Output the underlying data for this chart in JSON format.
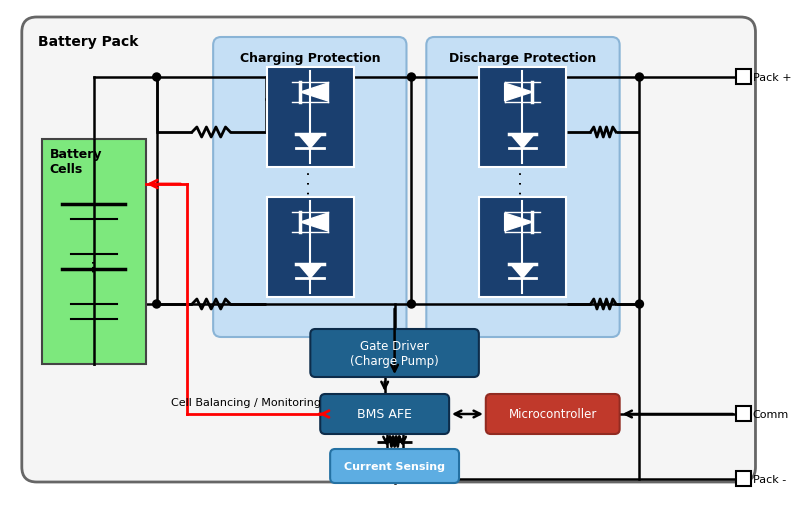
{
  "bg_color": "#ffffff",
  "outer_box_facecolor": "#f5f5f5",
  "outer_box_edgecolor": "#666666",
  "title": "Battery Pack",
  "battery_box_color": "#7de87d",
  "battery_box_label": "Battery\nCells",
  "charge_prot_color": "#c5dff5",
  "charge_prot_label": "Charging Protection",
  "discharge_prot_color": "#c5dff5",
  "discharge_prot_label": "Discharge Protection",
  "mosfet_color": "#1a3f6f",
  "gate_driver_color": "#1f618d",
  "gate_driver_label": "Gate Driver\n(Charge Pump)",
  "bms_afe_color": "#1f618d",
  "bms_afe_label": "BMS AFE",
  "microcontroller_color": "#c0392b",
  "microcontroller_label": "Microcontroller",
  "current_sensing_color": "#5dade2",
  "current_sensing_label": "Current Sensing",
  "wire_color": "#000000",
  "red_wire_color": "#ff0000",
  "pack_plus_label": "Pack +",
  "pack_minus_label": "Pack -",
  "comm_label": "Comm",
  "cell_balancing_label": "Cell Balancing / Monitoring"
}
